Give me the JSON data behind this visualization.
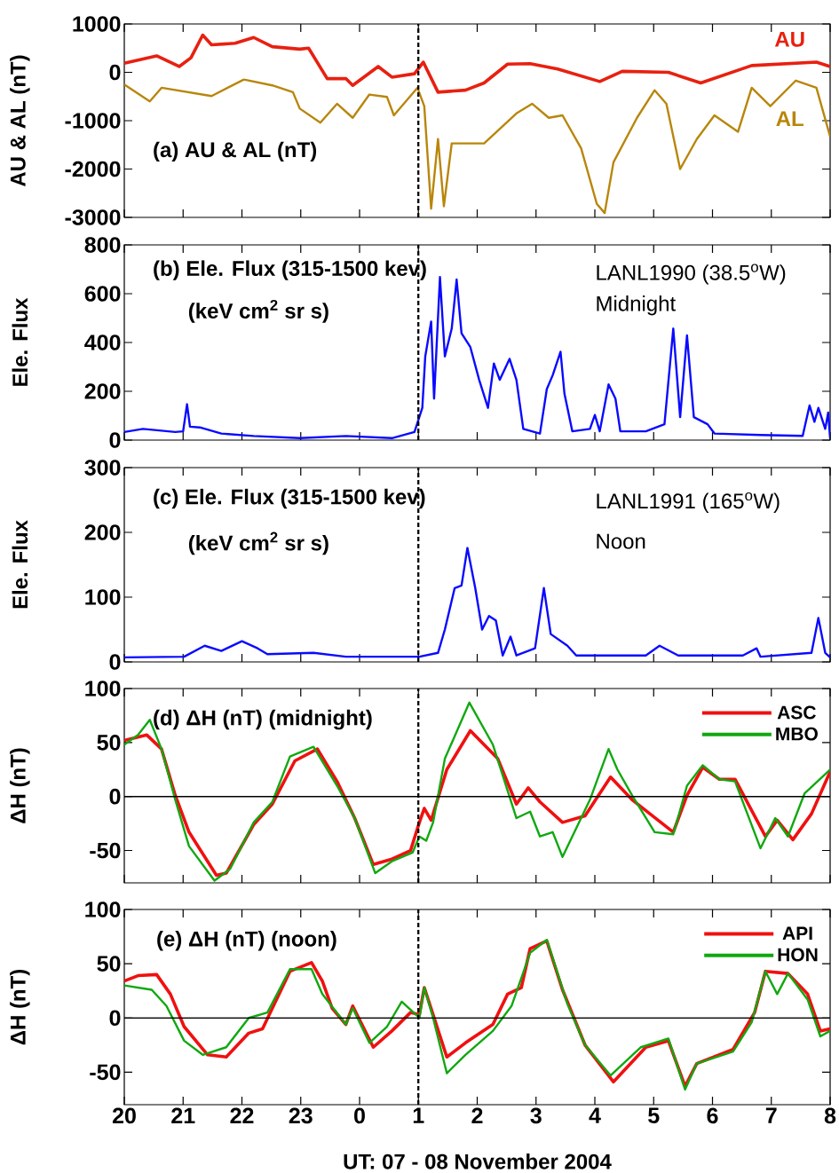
{
  "chart_data": [
    {
      "type": "line",
      "ylabel": "AU & AL (nT)",
      "xlim": [
        "2004-11-07T20:00",
        "2004-11-08T08:00"
      ],
      "ylim": [
        -3000,
        1000
      ],
      "tick_labels": "y",
      "xticks": [
        {
          "value": "2004-11-07T20:00",
          "label": null
        },
        {
          "value": "2004-11-07T21:00",
          "label": null
        },
        {
          "value": "2004-11-07T22:00",
          "label": null
        },
        {
          "value": "2004-11-07T23:00",
          "label": null
        },
        {
          "value": "2004-11-08T00:00",
          "label": null
        },
        {
          "value": "2004-11-08T01:00",
          "label": null
        },
        {
          "value": "2004-11-08T02:00",
          "label": null
        },
        {
          "value": "2004-11-08T03:00",
          "label": null
        },
        {
          "value": "2004-11-08T04:00",
          "label": null
        },
        {
          "value": "2004-11-08T05:00",
          "label": null
        },
        {
          "value": "2004-11-08T06:00",
          "label": null
        },
        {
          "value": "2004-11-08T07:00",
          "label": null
        },
        {
          "value": "2004-11-08T08:00",
          "label": null
        }
      ],
      "yticks": [
        -3000,
        -2000,
        -1000,
        0,
        1000
      ],
      "legend": false,
      "annotations": [
        "(a) AU & AL (nT)"
      ],
      "ref_lines": [
        {
          "axis": "x",
          "value": "2004-11-08T01:00",
          "color": "#000000",
          "line_style": "dashed"
        }
      ],
      "series": [
        {
          "name": "AU",
          "color": "#e82010",
          "x": [
            "2004-11-07T20:00",
            "2004-11-07T20:33",
            "2004-11-07T20:56",
            "2004-11-07T21:08",
            "2004-11-07T21:20",
            "2004-11-07T21:29",
            "2004-11-07T21:53",
            "2004-11-07T22:12",
            "2004-11-07T22:31",
            "2004-11-07T22:59",
            "2004-11-07T23:08",
            "2004-11-07T23:27",
            "2004-11-07T23:46",
            "2004-11-07T23:53",
            "2004-11-08T00:19",
            "2004-11-08T00:33",
            "2004-11-08T00:56",
            "2004-11-08T01:05",
            "2004-11-08T01:20",
            "2004-11-08T01:48",
            "2004-11-08T02:07",
            "2004-11-08T02:31",
            "2004-11-08T02:54",
            "2004-11-08T03:22",
            "2004-11-08T04:05",
            "2004-11-08T04:28",
            "2004-11-08T05:15",
            "2004-11-08T05:48",
            "2004-11-08T06:40",
            "2004-11-08T07:46",
            "2004-11-08T08:00"
          ],
          "values": [
            190,
            340,
            120,
            300,
            770,
            570,
            600,
            720,
            530,
            480,
            500,
            -130,
            -130,
            -270,
            120,
            -100,
            -30,
            210,
            -410,
            -370,
            -220,
            170,
            180,
            70,
            -190,
            20,
            0,
            -220,
            140,
            210,
            120
          ]
        },
        {
          "name": "AL",
          "color": "#b8860b",
          "x": [
            "2004-11-07T20:00",
            "2004-11-07T20:26",
            "2004-11-07T20:38",
            "2004-11-07T21:29",
            "2004-11-07T22:02",
            "2004-11-07T22:31",
            "2004-11-07T22:52",
            "2004-11-07T22:59",
            "2004-11-07T23:20",
            "2004-11-07T23:37",
            "2004-11-07T23:53",
            "2004-11-08T00:10",
            "2004-11-08T00:28",
            "2004-11-08T00:35",
            "2004-11-08T00:59",
            "2004-11-08T01:06",
            "2004-11-08T01:13",
            "2004-11-08T01:20",
            "2004-11-08T01:26",
            "2004-11-08T01:34",
            "2004-11-08T02:07",
            "2004-11-08T02:40",
            "2004-11-08T02:56",
            "2004-11-08T03:13",
            "2004-11-08T03:27",
            "2004-11-08T03:46",
            "2004-11-08T04:02",
            "2004-11-08T04:10",
            "2004-11-08T04:19",
            "2004-11-08T04:43",
            "2004-11-08T05:01",
            "2004-11-08T05:13",
            "2004-11-08T05:27",
            "2004-11-08T05:44",
            "2004-11-08T06:02",
            "2004-11-08T06:26",
            "2004-11-08T06:40",
            "2004-11-08T06:59",
            "2004-11-08T07:25",
            "2004-11-08T07:46",
            "2004-11-08T08:00"
          ],
          "values": [
            -250,
            -600,
            -320,
            -490,
            -150,
            -270,
            -410,
            -750,
            -1040,
            -650,
            -940,
            -460,
            -510,
            -890,
            -320,
            -700,
            -2820,
            -1380,
            -2770,
            -1470,
            -1470,
            -850,
            -650,
            -940,
            -890,
            -1570,
            -2720,
            -2910,
            -1860,
            -940,
            -370,
            -650,
            -2000,
            -1380,
            -890,
            -1230,
            -320,
            -700,
            -170,
            -320,
            -1330
          ]
        }
      ]
    },
    {
      "type": "line",
      "ylabel": "Ele. Flux",
      "xlim": [
        "2004-11-07T20:00",
        "2004-11-08T08:00"
      ],
      "ylim": [
        0,
        800
      ],
      "tick_labels": "y",
      "xticks": [
        {
          "value": "2004-11-07T20:00",
          "label": null
        },
        {
          "value": "2004-11-07T21:00",
          "label": null
        },
        {
          "value": "2004-11-07T22:00",
          "label": null
        },
        {
          "value": "2004-11-07T23:00",
          "label": null
        },
        {
          "value": "2004-11-08T00:00",
          "label": null
        },
        {
          "value": "2004-11-08T01:00",
          "label": null
        },
        {
          "value": "2004-11-08T02:00",
          "label": null
        },
        {
          "value": "2004-11-08T03:00",
          "label": null
        },
        {
          "value": "2004-11-08T04:00",
          "label": null
        },
        {
          "value": "2004-11-08T05:00",
          "label": null
        },
        {
          "value": "2004-11-08T06:00",
          "label": null
        },
        {
          "value": "2004-11-08T07:00",
          "label": null
        },
        {
          "value": "2004-11-08T08:00",
          "label": null
        }
      ],
      "yticks": [
        0,
        200,
        400,
        600,
        800
      ],
      "legend": false,
      "annotations": [
        "(b) Ele. Flux (315-1500 kev)",
        "(keV cm$^{2}$ sr s)",
        "LANL1990 (38.5$^{o}$W)",
        "Midnight"
      ],
      "ref_lines": [
        {
          "axis": "x",
          "value": "2004-11-08T01:00",
          "color": "#000000",
          "line_style": "dashed"
        }
      ],
      "series": [
        {
          "color": "#0a0aff",
          "x": [
            "2004-11-07T20:00",
            "2004-11-07T20:19",
            "2004-11-07T20:52",
            "2004-11-07T21:00",
            "2004-11-07T21:04",
            "2004-11-07T21:07",
            "2004-11-07T21:17",
            "2004-11-07T21:39",
            "2004-11-07T22:12",
            "2004-11-07T22:59",
            "2004-11-07T23:46",
            "2004-11-08T00:33",
            "2004-11-08T00:56",
            "2004-11-08T01:04",
            "2004-11-08T01:07",
            "2004-11-08T01:13",
            "2004-11-08T01:16",
            "2004-11-08T01:22",
            "2004-11-08T01:27",
            "2004-11-08T01:34",
            "2004-11-08T01:39",
            "2004-11-08T01:44",
            "2004-11-08T01:53",
            "2004-11-08T02:02",
            "2004-11-08T02:11",
            "2004-11-08T02:17",
            "2004-11-08T02:23",
            "2004-11-08T02:33",
            "2004-11-08T02:40",
            "2004-11-08T02:47",
            "2004-11-08T03:04",
            "2004-11-08T03:11",
            "2004-11-08T03:17",
            "2004-11-08T03:25",
            "2004-11-08T03:29",
            "2004-11-08T03:37",
            "2004-11-08T03:55",
            "2004-11-08T04:00",
            "2004-11-08T04:05",
            "2004-11-08T04:14",
            "2004-11-08T04:21",
            "2004-11-08T04:26",
            "2004-11-08T04:52",
            "2004-11-08T05:11",
            "2004-11-08T05:20",
            "2004-11-08T05:27",
            "2004-11-08T05:34",
            "2004-11-08T05:41",
            "2004-11-08T05:55",
            "2004-11-08T06:02",
            "2004-11-08T06:49",
            "2004-11-08T07:32",
            "2004-11-08T07:39",
            "2004-11-08T07:44",
            "2004-11-08T07:48",
            "2004-11-08T07:55",
            "2004-11-08T07:58",
            "2004-11-08T08:00"
          ],
          "values": [
            33,
            46,
            33,
            36,
            147,
            55,
            52,
            27,
            17,
            8,
            17,
            8,
            33,
            132,
            343,
            486,
            170,
            668,
            343,
            457,
            658,
            438,
            381,
            247,
            132,
            314,
            247,
            333,
            247,
            46,
            27,
            209,
            266,
            362,
            190,
            36,
            46,
            103,
            36,
            228,
            170,
            36,
            36,
            65,
            457,
            94,
            429,
            94,
            65,
            27,
            21,
            17,
            142,
            75,
            132,
            46,
            113,
            8
          ]
        }
      ]
    },
    {
      "type": "line",
      "ylabel": "Ele. Flux",
      "xlim": [
        "2004-11-07T20:00",
        "2004-11-08T08:00"
      ],
      "ylim": [
        0,
        300
      ],
      "tick_labels": "y",
      "xticks": [
        {
          "value": "2004-11-07T20:00",
          "label": null
        },
        {
          "value": "2004-11-07T21:00",
          "label": null
        },
        {
          "value": "2004-11-07T22:00",
          "label": null
        },
        {
          "value": "2004-11-07T23:00",
          "label": null
        },
        {
          "value": "2004-11-08T00:00",
          "label": null
        },
        {
          "value": "2004-11-08T01:00",
          "label": null
        },
        {
          "value": "2004-11-08T02:00",
          "label": null
        },
        {
          "value": "2004-11-08T03:00",
          "label": null
        },
        {
          "value": "2004-11-08T04:00",
          "label": null
        },
        {
          "value": "2004-11-08T05:00",
          "label": null
        },
        {
          "value": "2004-11-08T06:00",
          "label": null
        },
        {
          "value": "2004-11-08T07:00",
          "label": null
        },
        {
          "value": "2004-11-08T08:00",
          "label": null
        }
      ],
      "yticks": [
        0,
        100,
        200,
        300
      ],
      "legend": false,
      "annotations": [
        "(c) Ele. Flux (315-1500 kev)",
        "(keV cm$^{2}$ sr s)",
        "LANL1991 (165$^{o}$W)",
        "Noon"
      ],
      "ref_lines": [
        {
          "axis": "x",
          "value": "2004-11-08T01:00",
          "color": "#000000",
          "line_style": "dashed"
        }
      ],
      "series": [
        {
          "color": "#0a0aff",
          "x": [
            "2004-11-07T20:00",
            "2004-11-07T21:01",
            "2004-11-07T21:22",
            "2004-11-07T21:39",
            "2004-11-07T22:00",
            "2004-11-07T22:16",
            "2004-11-07T22:26",
            "2004-11-07T23:13",
            "2004-11-07T23:46",
            "2004-11-08T01:01",
            "2004-11-08T01:20",
            "2004-11-08T01:27",
            "2004-11-08T01:37",
            "2004-11-08T01:44",
            "2004-11-08T01:50",
            "2004-11-08T01:58",
            "2004-11-08T02:05",
            "2004-11-08T02:12",
            "2004-11-08T02:19",
            "2004-11-08T02:26",
            "2004-11-08T02:34",
            "2004-11-08T02:40",
            "2004-11-08T02:59",
            "2004-11-08T03:08",
            "2004-11-08T03:15",
            "2004-11-08T03:32",
            "2004-11-08T03:41",
            "2004-11-08T04:52",
            "2004-11-08T05:06",
            "2004-11-08T05:25",
            "2004-11-08T06:31",
            "2004-11-08T06:45",
            "2004-11-08T06:49",
            "2004-11-08T07:41",
            "2004-11-08T07:48",
            "2004-11-08T07:55",
            "2004-11-08T08:00"
          ],
          "values": [
            7,
            8,
            25,
            17,
            32,
            21,
            12,
            14,
            8,
            8,
            14,
            50,
            114,
            118,
            176,
            114,
            50,
            71,
            64,
            10,
            39,
            10,
            21,
            114,
            43,
            25,
            10,
            10,
            25,
            10,
            10,
            21,
            8,
            14,
            68,
            14,
            7
          ]
        }
      ]
    },
    {
      "type": "line",
      "ylabel": "ΔH (nT)",
      "xlim": [
        "2004-11-07T20:00",
        "2004-11-08T08:00"
      ],
      "ylim": [
        -80,
        100
      ],
      "tick_labels": "y",
      "xticks": [
        {
          "value": "2004-11-07T20:00",
          "label": null
        },
        {
          "value": "2004-11-07T21:00",
          "label": null
        },
        {
          "value": "2004-11-07T22:00",
          "label": null
        },
        {
          "value": "2004-11-07T23:00",
          "label": null
        },
        {
          "value": "2004-11-08T00:00",
          "label": null
        },
        {
          "value": "2004-11-08T01:00",
          "label": null
        },
        {
          "value": "2004-11-08T02:00",
          "label": null
        },
        {
          "value": "2004-11-08T03:00",
          "label": null
        },
        {
          "value": "2004-11-08T04:00",
          "label": null
        },
        {
          "value": "2004-11-08T05:00",
          "label": null
        },
        {
          "value": "2004-11-08T06:00",
          "label": null
        },
        {
          "value": "2004-11-08T07:00",
          "label": null
        },
        {
          "value": "2004-11-08T08:00",
          "label": null
        }
      ],
      "yticks": [
        -50,
        0,
        50,
        100
      ],
      "legend": "top right",
      "annotations": [
        "(d) ΔH (nT) (midnight)"
      ],
      "ref_lines": [
        {
          "axis": "y",
          "value": 0,
          "color": "#000000",
          "line_style": "solid"
        },
        {
          "axis": "x",
          "value": "2004-11-08T01:00",
          "color": "#000000",
          "line_style": "dashed"
        }
      ],
      "series": [
        {
          "name": "ASC",
          "color": "#f01010",
          "x": [
            "2004-11-07T20:00",
            "2004-11-07T20:23",
            "2004-11-07T20:38",
            "2004-11-07T20:52",
            "2004-11-07T21:06",
            "2004-11-07T21:34",
            "2004-11-07T21:44",
            "2004-11-07T22:12",
            "2004-11-07T22:31",
            "2004-11-07T22:54",
            "2004-11-07T23:17",
            "2004-11-07T23:37",
            "2004-11-07T23:55",
            "2004-11-08T00:14",
            "2004-11-08T00:33",
            "2004-11-08T00:52",
            "2004-11-08T01:01",
            "2004-11-08T01:06",
            "2004-11-08T01:13",
            "2004-11-08T01:29",
            "2004-11-08T01:53",
            "2004-11-08T02:21",
            "2004-11-08T02:40",
            "2004-11-08T02:52",
            "2004-11-08T03:04",
            "2004-11-08T03:27",
            "2004-11-08T03:50",
            "2004-11-08T04:16",
            "2004-11-08T04:38",
            "2004-11-08T05:20",
            "2004-11-08T05:34",
            "2004-11-08T05:50",
            "2004-11-08T06:07",
            "2004-11-08T06:23",
            "2004-11-08T06:54",
            "2004-11-08T07:06",
            "2004-11-08T07:22",
            "2004-11-08T07:41",
            "2004-11-08T08:00"
          ],
          "values": [
            52,
            57,
            44,
            1,
            -33,
            -73,
            -71,
            -26,
            -7,
            33,
            44,
            14,
            -20,
            -63,
            -58,
            -50,
            -24,
            -11,
            -22,
            25,
            61,
            35,
            -7,
            8,
            -5,
            -24,
            -18,
            18,
            -3,
            -33,
            1,
            27,
            16,
            16,
            -37,
            -22,
            -40,
            -16,
            23
          ]
        },
        {
          "name": "MBO",
          "color": "#10a810",
          "x": [
            "2004-11-07T20:00",
            "2004-11-07T20:14",
            "2004-11-07T20:26",
            "2004-11-07T20:38",
            "2004-11-07T20:52",
            "2004-11-07T21:06",
            "2004-11-07T21:32",
            "2004-11-07T21:48",
            "2004-11-07T22:12",
            "2004-11-07T22:31",
            "2004-11-07T22:49",
            "2004-11-07T23:13",
            "2004-11-07T23:37",
            "2004-11-07T23:55",
            "2004-11-08T00:16",
            "2004-11-08T00:33",
            "2004-11-08T00:54",
            "2004-11-08T01:01",
            "2004-11-08T01:08",
            "2004-11-08T01:15",
            "2004-11-08T01:27",
            "2004-11-08T01:52",
            "2004-11-08T02:16",
            "2004-11-08T02:40",
            "2004-11-08T02:54",
            "2004-11-08T03:04",
            "2004-11-08T03:17",
            "2004-11-08T03:27",
            "2004-11-08T03:55",
            "2004-11-08T04:14",
            "2004-11-08T04:23",
            "2004-11-08T04:38",
            "2004-11-08T05:01",
            "2004-11-08T05:20",
            "2004-11-08T05:34",
            "2004-11-08T05:50",
            "2004-11-08T06:07",
            "2004-11-08T06:23",
            "2004-11-08T06:49",
            "2004-11-08T07:04",
            "2004-11-08T07:17",
            "2004-11-08T07:34",
            "2004-11-08T08:00"
          ],
          "values": [
            48,
            57,
            71,
            44,
            -3,
            -46,
            -78,
            -67,
            -24,
            -5,
            37,
            46,
            10,
            -20,
            -71,
            -60,
            -52,
            -37,
            -41,
            -24,
            35,
            87,
            48,
            -20,
            -14,
            -37,
            -33,
            -56,
            -3,
            44,
            25,
            1,
            -33,
            -35,
            10,
            29,
            16,
            14,
            -48,
            -20,
            -37,
            3,
            25
          ]
        }
      ]
    },
    {
      "type": "line",
      "ylabel": "ΔH (nT)",
      "xlabel": "UT: 07 - 08 November 2004",
      "xlim": [
        "2004-11-07T20:00",
        "2004-11-08T08:00"
      ],
      "ylim": [
        -80,
        100
      ],
      "xticks": [
        {
          "value": "2004-11-07T20:00",
          "label": "20"
        },
        {
          "value": "2004-11-07T21:00",
          "label": "21"
        },
        {
          "value": "2004-11-07T22:00",
          "label": "22"
        },
        {
          "value": "2004-11-07T23:00",
          "label": "23"
        },
        {
          "value": "2004-11-08T00:00",
          "label": "0"
        },
        {
          "value": "2004-11-08T01:00",
          "label": "1"
        },
        {
          "value": "2004-11-08T02:00",
          "label": "2"
        },
        {
          "value": "2004-11-08T03:00",
          "label": "3"
        },
        {
          "value": "2004-11-08T04:00",
          "label": "4"
        },
        {
          "value": "2004-11-08T05:00",
          "label": "5"
        },
        {
          "value": "2004-11-08T06:00",
          "label": "6"
        },
        {
          "value": "2004-11-08T07:00",
          "label": "7"
        },
        {
          "value": "2004-11-08T08:00",
          "label": "8"
        }
      ],
      "yticks": [
        -50,
        0,
        50,
        100
      ],
      "legend": "top right",
      "annotations": [
        "(e) ΔH (nT) (noon)"
      ],
      "ref_lines": [
        {
          "axis": "y",
          "value": 0,
          "color": "#000000",
          "line_style": "solid"
        },
        {
          "axis": "x",
          "value": "2004-11-08T01:00",
          "color": "#000000",
          "line_style": "dashed"
        }
      ],
      "series": [
        {
          "name": "API",
          "color": "#f01010",
          "x": [
            "2004-11-07T20:00",
            "2004-11-07T20:14",
            "2004-11-07T20:33",
            "2004-11-07T20:47",
            "2004-11-07T21:01",
            "2004-11-07T21:25",
            "2004-11-07T21:44",
            "2004-11-07T22:07",
            "2004-11-07T22:21",
            "2004-11-07T22:49",
            "2004-11-07T23:11",
            "2004-11-07T23:22",
            "2004-11-07T23:32",
            "2004-11-07T23:46",
            "2004-11-07T23:53",
            "2004-11-08T00:14",
            "2004-11-08T00:33",
            "2004-11-08T00:52",
            "2004-11-08T01:01",
            "2004-11-08T01:06",
            "2004-11-08T01:15",
            "2004-11-08T01:29",
            "2004-11-08T01:48",
            "2004-11-08T02:16",
            "2004-11-08T02:31",
            "2004-11-08T02:45",
            "2004-11-08T02:54",
            "2004-11-08T03:11",
            "2004-11-08T03:27",
            "2004-11-08T03:50",
            "2004-11-08T04:19",
            "2004-11-08T04:52",
            "2004-11-08T05:15",
            "2004-11-08T05:32",
            "2004-11-08T05:44",
            "2004-11-08T06:21",
            "2004-11-08T06:43",
            "2004-11-08T06:54",
            "2004-11-08T07:17",
            "2004-11-08T07:37",
            "2004-11-08T07:50",
            "2004-11-08T08:00"
          ],
          "values": [
            34,
            39,
            40,
            22,
            -8,
            -34,
            -36,
            -14,
            -10,
            43,
            51,
            34,
            9,
            -6,
            11,
            -27,
            -12,
            5,
            3,
            28,
            3,
            -36,
            -23,
            -6,
            22,
            28,
            64,
            71,
            26,
            -25,
            -59,
            -27,
            -21,
            -63,
            -42,
            -29,
            5,
            43,
            41,
            22,
            -12,
            -10
          ]
        },
        {
          "name": "HON",
          "color": "#10a810",
          "x": [
            "2004-11-07T20:00",
            "2004-11-07T20:28",
            "2004-11-07T20:43",
            "2004-11-07T21:01",
            "2004-11-07T21:20",
            "2004-11-07T21:44",
            "2004-11-07T22:07",
            "2004-11-07T22:26",
            "2004-11-07T22:49",
            "2004-11-07T23:11",
            "2004-11-07T23:22",
            "2004-11-07T23:46",
            "2004-11-07T23:53",
            "2004-11-08T00:10",
            "2004-11-08T00:28",
            "2004-11-08T00:43",
            "2004-11-08T01:01",
            "2004-11-08T01:06",
            "2004-11-08T01:15",
            "2004-11-08T01:29",
            "2004-11-08T01:48",
            "2004-11-08T02:16",
            "2004-11-08T02:35",
            "2004-11-08T02:54",
            "2004-11-08T03:11",
            "2004-11-08T03:32",
            "2004-11-08T03:50",
            "2004-11-08T04:16",
            "2004-11-08T04:47",
            "2004-11-08T05:15",
            "2004-11-08T05:32",
            "2004-11-08T05:44",
            "2004-11-08T06:21",
            "2004-11-08T06:40",
            "2004-11-08T06:54",
            "2004-11-08T07:06",
            "2004-11-08T07:17",
            "2004-11-08T07:37",
            "2004-11-08T07:50",
            "2004-11-08T08:00"
          ],
          "values": [
            30,
            26,
            11,
            -21,
            -34,
            -27,
            0,
            5,
            45,
            45,
            22,
            -6,
            9,
            -23,
            -8,
            15,
            0,
            28,
            0,
            -51,
            -34,
            -12,
            11,
            60,
            72,
            13,
            -25,
            -53,
            -27,
            -19,
            -66,
            -42,
            -31,
            -4,
            43,
            22,
            41,
            17,
            -17,
            -12
          ]
        }
      ]
    }
  ]
}
